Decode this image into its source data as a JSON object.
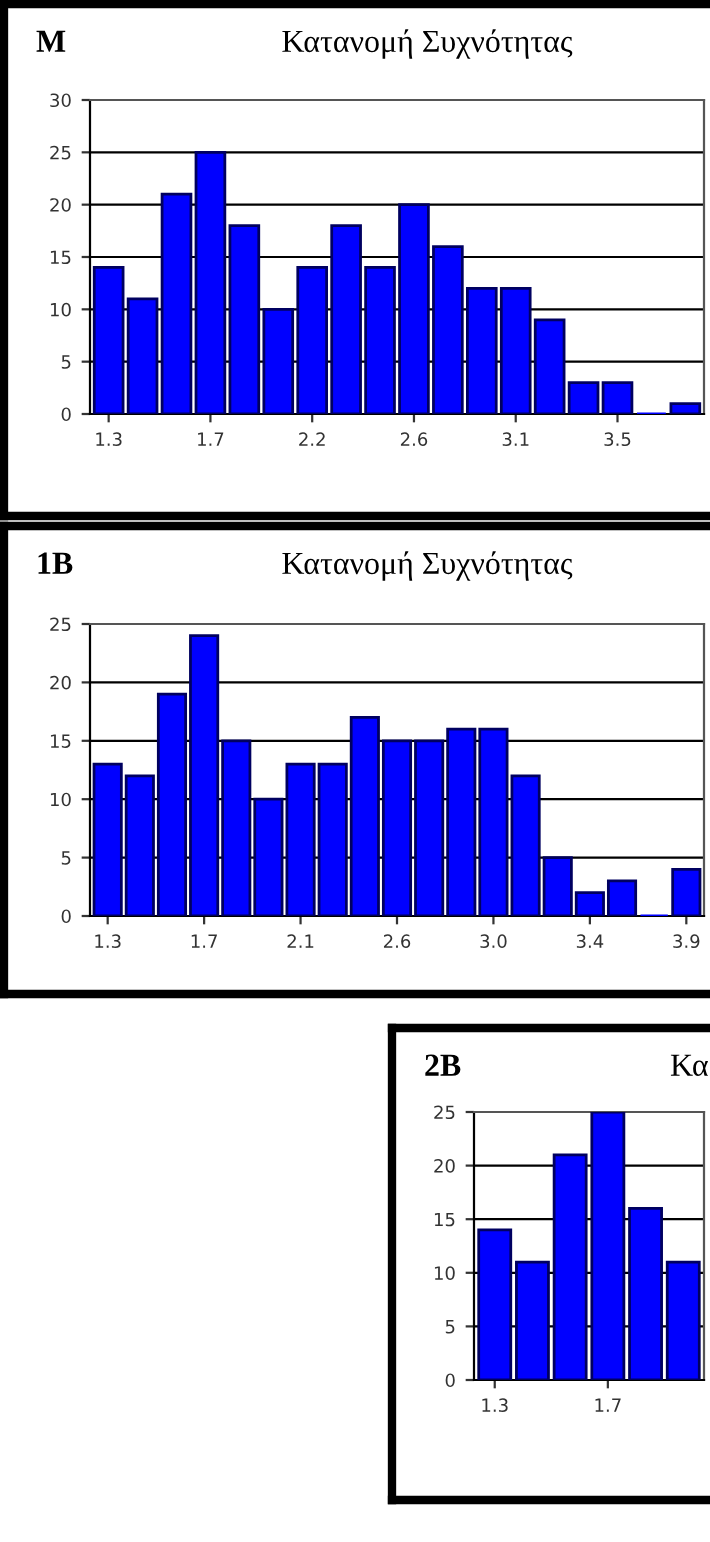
{
  "chart_data": [
    {
      "type": "bar",
      "annotations": [
        "M"
      ],
      "title": "Κατανομή Συχνότητας",
      "categories": [
        "1.3",
        null,
        null,
        "1.7",
        null,
        null,
        "2.2",
        null,
        null,
        "2.6",
        null,
        null,
        "3.1",
        null,
        null,
        "3.5",
        null,
        null
      ],
      "values": [
        14,
        11,
        21,
        25,
        18,
        10,
        14,
        18,
        14,
        20,
        16,
        12,
        12,
        9,
        3,
        3,
        0,
        1
      ],
      "color": "#0000ff",
      "ylim": [
        0,
        30
      ],
      "yticks": [
        0,
        5,
        10,
        15,
        20,
        25,
        30
      ],
      "grid": "y"
    },
    {
      "type": "bar",
      "annotations": [
        "1B"
      ],
      "title": "Κατανομή Συχνότητας",
      "categories": [
        "1.3",
        null,
        null,
        "1.7",
        null,
        null,
        "2.1",
        null,
        null,
        "2.6",
        null,
        null,
        "3.0",
        null,
        null,
        "3.4",
        null,
        null,
        "3.9"
      ],
      "values": [
        13,
        12,
        19,
        24,
        15,
        10,
        13,
        13,
        17,
        15,
        15,
        16,
        16,
        12,
        5,
        2,
        3,
        0,
        4
      ],
      "color": "#0000ff",
      "ylim": [
        0,
        25
      ],
      "yticks": [
        0,
        5,
        10,
        15,
        20,
        25
      ],
      "grid": "y"
    },
    {
      "type": "bar",
      "annotations": [
        "2B"
      ],
      "title": "Κα",
      "categories": [
        "1.3",
        null,
        null,
        "1.7",
        null,
        null
      ],
      "values": [
        14,
        11,
        21,
        25,
        16,
        11
      ],
      "color": "#0000ff",
      "ylim": [
        0,
        25
      ],
      "yticks": [
        0,
        5,
        10,
        15,
        20,
        25
      ],
      "grid": "y"
    }
  ]
}
